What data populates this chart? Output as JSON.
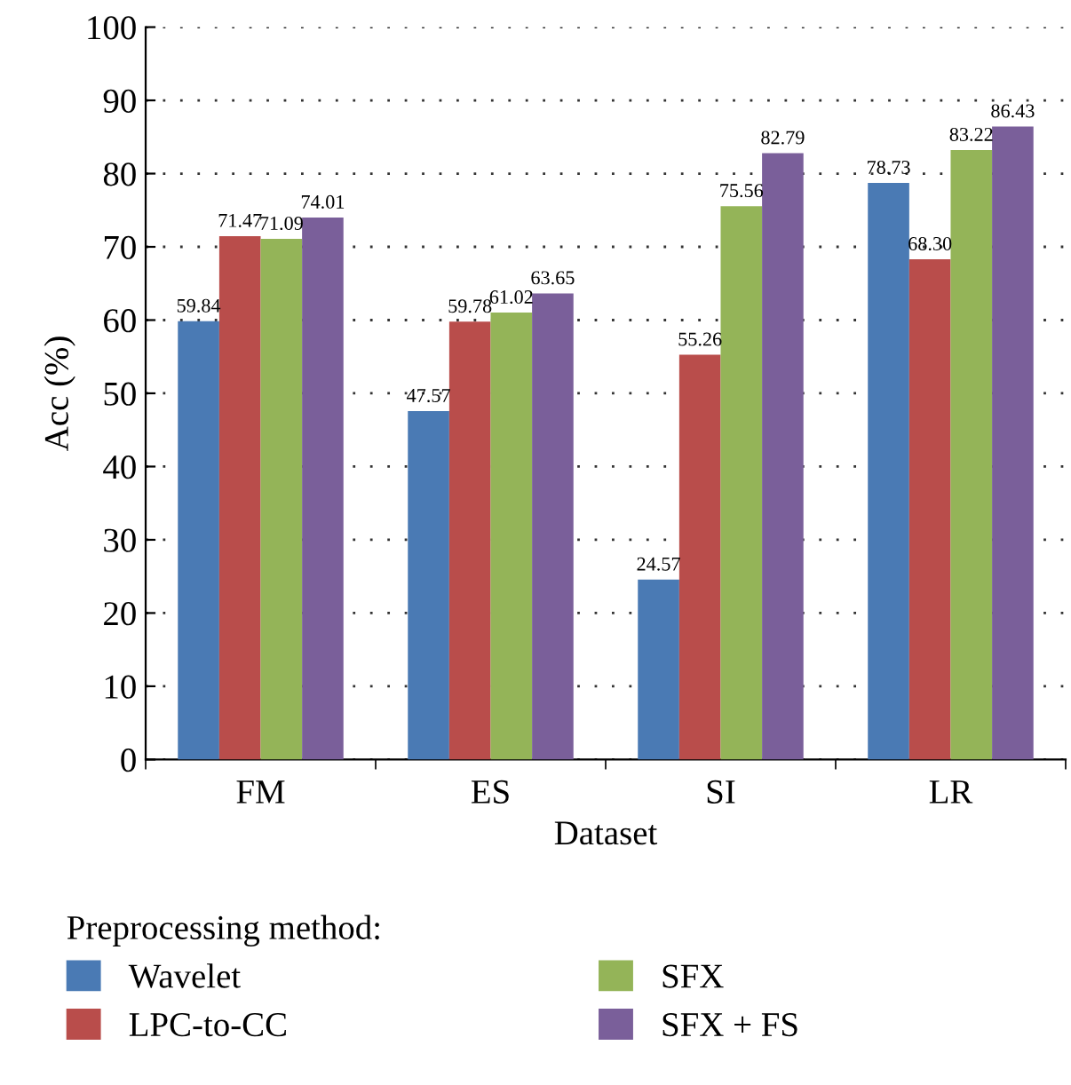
{
  "chart_data": {
    "type": "bar",
    "xlabel": "Dataset",
    "ylabel": "Acc (%)",
    "legend_title": "Preprocessing method:",
    "categories": [
      "FM",
      "ES",
      "SI",
      "LR"
    ],
    "series": [
      {
        "name": "Wavelet",
        "color": "#4a7ab4",
        "values": [
          59.84,
          47.57,
          24.57,
          78.73
        ],
        "value_labels": [
          "59.84",
          "47.57",
          "24.57",
          "78.73"
        ]
      },
      {
        "name": "LPC-to-CC",
        "color": "#b94d4b",
        "values": [
          71.47,
          59.78,
          55.26,
          68.3
        ],
        "value_labels": [
          "71.47",
          "59.78",
          "55.26",
          "68.30"
        ]
      },
      {
        "name": "SFX",
        "color": "#94b458",
        "values": [
          71.09,
          61.02,
          75.56,
          83.22
        ],
        "value_labels": [
          "71.09",
          "61.02",
          "75.56",
          "83.22"
        ]
      },
      {
        "name": "SFX + FS",
        "color": "#7a5f9a",
        "values": [
          74.01,
          63.65,
          82.79,
          86.43
        ],
        "value_labels": [
          "74.01",
          "63.65",
          "82.79",
          "86.43"
        ]
      }
    ],
    "ylim": [
      0,
      100
    ],
    "yticks": [
      0,
      10,
      20,
      30,
      40,
      50,
      60,
      70,
      80,
      90,
      100
    ],
    "grid": "y",
    "legend": "bottom"
  }
}
